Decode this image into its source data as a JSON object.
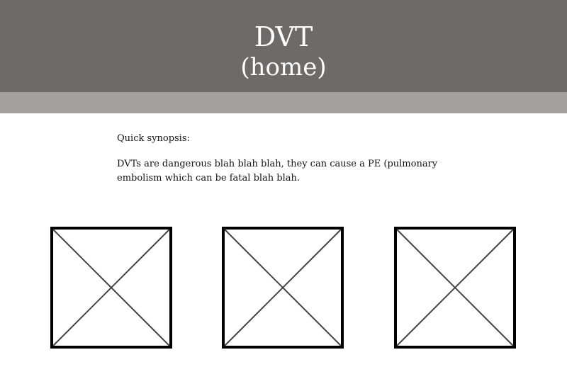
{
  "header": {
    "title": "DVT",
    "subtitle": "(home)",
    "background": "#6e6a68"
  },
  "subbar": {
    "background": "#a3a1a0"
  },
  "synopsis": {
    "label": "Quick synopsis:",
    "body": "DVTs are dangerous blah blah blah, they can cause a PE (pulmonary embolism which can be fatal blah blah."
  },
  "placeholders": [
    {
      "icon": "image-placeholder-icon"
    },
    {
      "icon": "image-placeholder-icon"
    },
    {
      "icon": "image-placeholder-icon"
    }
  ]
}
